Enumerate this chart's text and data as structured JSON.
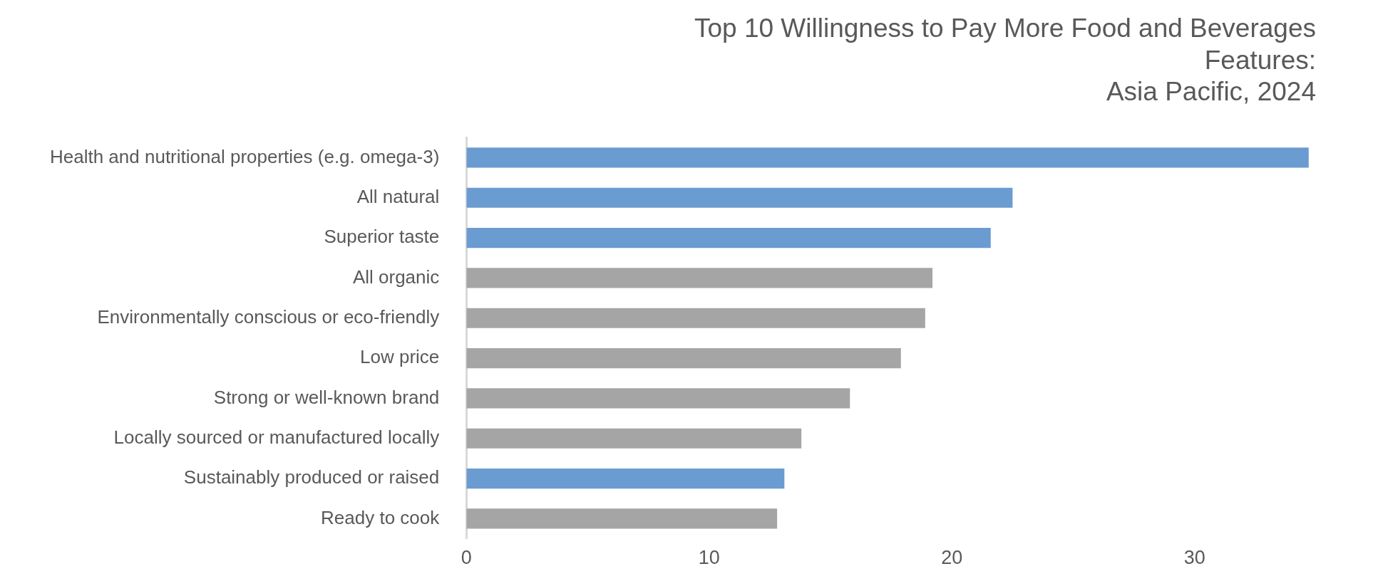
{
  "chart_data": {
    "type": "bar",
    "orientation": "horizontal",
    "title": "Top 10 Willingness to Pay More Food and Beverages Features:\nAsia Pacific, 2024",
    "categories": [
      "Health and nutritional properties (e.g. omega-3)",
      "All natural",
      "Superior taste",
      "All organic",
      "Environmentally conscious or eco-friendly",
      "Low price",
      "Strong or well-known brand",
      "Locally sourced or manufactured locally",
      "Sustainably produced or raised",
      "Ready to cook"
    ],
    "values": [
      34.7,
      22.5,
      21.6,
      19.2,
      18.9,
      17.9,
      15.8,
      13.8,
      13.1,
      12.8
    ],
    "colors": [
      "#6a9bd1",
      "#6a9bd1",
      "#6a9bd1",
      "#a5a5a5",
      "#a5a5a5",
      "#a5a5a5",
      "#a5a5a5",
      "#a5a5a5",
      "#6a9bd1",
      "#a5a5a5"
    ],
    "xlim": [
      0,
      35
    ],
    "xticks": [
      0,
      10,
      20,
      30
    ],
    "grid": false,
    "legend": false
  }
}
